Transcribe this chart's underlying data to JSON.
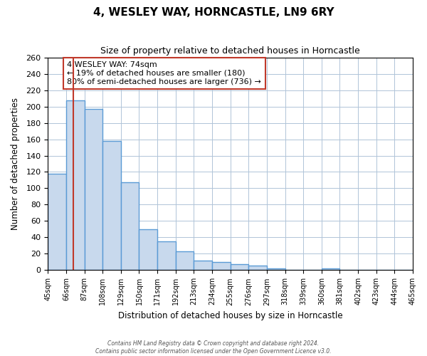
{
  "title": "4, WESLEY WAY, HORNCASTLE, LN9 6RY",
  "subtitle": "Size of property relative to detached houses in Horncastle",
  "bar_values": [
    118,
    207,
    197,
    158,
    107,
    50,
    35,
    23,
    12,
    10,
    7,
    6,
    2,
    0,
    0,
    2,
    0,
    0,
    0,
    0
  ],
  "bin_edges": [
    45,
    66,
    87,
    108,
    129,
    150,
    171,
    192,
    213,
    234,
    255,
    276,
    297,
    318,
    339,
    360,
    381,
    402,
    423,
    444,
    465
  ],
  "bin_labels": [
    "45sqm",
    "66sqm",
    "87sqm",
    "108sqm",
    "129sqm",
    "150sqm",
    "171sqm",
    "192sqm",
    "213sqm",
    "234sqm",
    "255sqm",
    "276sqm",
    "297sqm",
    "318sqm",
    "339sqm",
    "360sqm",
    "381sqm",
    "402sqm",
    "423sqm",
    "444sqm",
    "465sqm"
  ],
  "bar_color": "#c8d9ed",
  "bar_edge_color": "#5b9bd5",
  "bar_edge_width": 1.0,
  "vline_x": 74,
  "vline_color": "#c0392b",
  "annotation_title": "4 WESLEY WAY: 74sqm",
  "annotation_line1": "← 19% of detached houses are smaller (180)",
  "annotation_line2": "80% of semi-detached houses are larger (736) →",
  "annotation_box_color": "#ffffff",
  "annotation_box_edge": "#c0392b",
  "xlabel": "Distribution of detached houses by size in Horncastle",
  "ylabel": "Number of detached properties",
  "ylim": [
    0,
    260
  ],
  "yticks": [
    0,
    20,
    40,
    60,
    80,
    100,
    120,
    140,
    160,
    180,
    200,
    220,
    240,
    260
  ],
  "grid_color": "#b0c4d8",
  "footnote1": "Contains HM Land Registry data © Crown copyright and database right 2024.",
  "footnote2": "Contains public sector information licensed under the Open Government Licence v3.0."
}
